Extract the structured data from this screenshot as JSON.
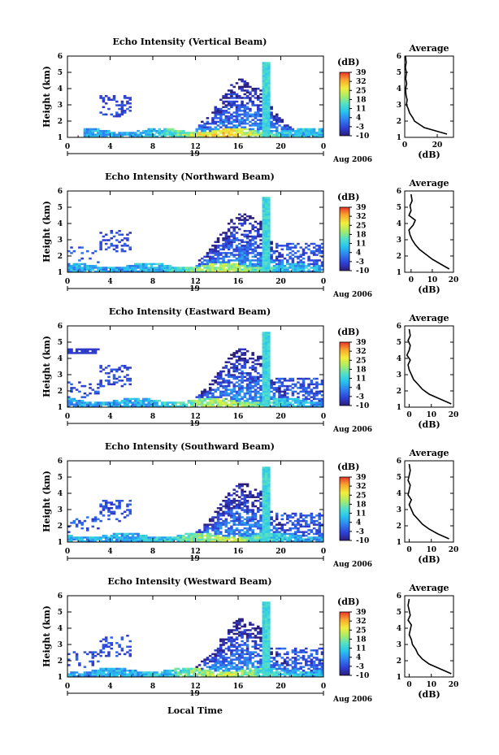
{
  "figure": {
    "xlabel": "Local Time",
    "time_ticks": [
      "0",
      "4",
      "8",
      "12",
      "16",
      "20",
      "0"
    ],
    "date_label": "19",
    "month_label": "Aug 2006",
    "cb_unit": "(dB)",
    "cb_ticks": [
      "39",
      "32",
      "25",
      "18",
      "11",
      "4",
      "-3",
      "-10"
    ],
    "avg_title": "Average",
    "avg_xlabel": "(dB)",
    "ylabel": "Height (km)",
    "y_ticks": [
      "1",
      "2",
      "3",
      "4",
      "5",
      "6"
    ]
  },
  "chart_data": [
    {
      "type": "heatmap",
      "title": "Echo Intensity (Vertical Beam)",
      "xlabel": "Local Time",
      "ylabel": "Height (km)",
      "xlim": [
        0,
        24
      ],
      "ylim": [
        1,
        6
      ],
      "clim": [
        -10,
        39
      ],
      "avg_profile": {
        "type": "line",
        "title": "Average",
        "xlabel": "(dB)",
        "xlim": [
          0,
          30
        ],
        "x_ticks": [
          "0",
          "20"
        ],
        "height_km": [
          1.2,
          1.4,
          1.6,
          1.8,
          2.0,
          2.2,
          2.5,
          2.8,
          3.0,
          3.3,
          3.6,
          4.0,
          4.3,
          4.6,
          5.0,
          5.3,
          5.6,
          6.0
        ],
        "db": [
          26,
          19,
          12,
          9,
          6,
          5,
          3,
          2,
          1,
          1.5,
          0.8,
          0.5,
          1.2,
          0.6,
          1.0,
          0.4,
          0.9,
          0.5
        ]
      }
    },
    {
      "type": "heatmap",
      "title": "Echo Intensity (Northward Beam)",
      "xlabel": "Local Time",
      "ylabel": "Height (km)",
      "xlim": [
        0,
        24
      ],
      "ylim": [
        1,
        6
      ],
      "clim": [
        -10,
        39
      ],
      "avg_profile": {
        "type": "line",
        "title": "Average",
        "xlabel": "(dB)",
        "xlim": [
          -3,
          20
        ],
        "x_ticks": [
          "0",
          "10",
          "20"
        ],
        "height_km": [
          1.2,
          1.5,
          1.8,
          2.1,
          2.4,
          2.7,
          3.0,
          3.3,
          3.6,
          3.9,
          4.2,
          4.5,
          4.8,
          5.1,
          5.4,
          5.8
        ],
        "db": [
          18,
          14,
          10,
          7,
          4,
          2,
          0.5,
          -0.5,
          -1,
          1,
          2,
          -1,
          0,
          -0.5,
          0.5,
          0
        ]
      }
    },
    {
      "type": "heatmap",
      "title": "Echo Intensity (Eastward Beam)",
      "xlabel": "Local Time",
      "ylabel": "Height (km)",
      "xlim": [
        0,
        24
      ],
      "ylim": [
        1,
        6
      ],
      "clim": [
        -10,
        39
      ],
      "avg_profile": {
        "type": "line",
        "title": "Average",
        "xlabel": "(dB)",
        "xlim": [
          -2,
          20
        ],
        "x_ticks": [
          "0",
          "10",
          "20"
        ],
        "height_km": [
          1.2,
          1.5,
          1.8,
          2.1,
          2.4,
          2.7,
          3.0,
          3.3,
          3.6,
          3.9,
          4.2,
          4.5,
          4.8,
          5.1,
          5.4,
          5.8
        ],
        "db": [
          19,
          14,
          9,
          6,
          4,
          2,
          1,
          0,
          -0.5,
          0.5,
          -1,
          0,
          0.5,
          -0.5,
          0.5,
          0
        ]
      }
    },
    {
      "type": "heatmap",
      "title": "Echo Intensity (Southward Beam)",
      "xlabel": "Local Time",
      "ylabel": "Height (km)",
      "xlim": [
        0,
        24
      ],
      "ylim": [
        1,
        6
      ],
      "clim": [
        -10,
        39
      ],
      "avg_profile": {
        "type": "line",
        "title": "Average",
        "xlabel": "(dB)",
        "xlim": [
          -2,
          20
        ],
        "x_ticks": [
          "0",
          "10",
          "20"
        ],
        "height_km": [
          1.2,
          1.5,
          1.8,
          2.1,
          2.4,
          2.7,
          3.0,
          3.3,
          3.6,
          3.9,
          4.2,
          4.5,
          4.8,
          5.1,
          5.4,
          5.8
        ],
        "db": [
          18,
          13,
          9,
          6,
          4,
          2,
          1,
          0,
          1,
          -0.5,
          0,
          0.5,
          -0.5,
          0,
          0.5,
          0
        ]
      }
    },
    {
      "type": "heatmap",
      "title": "Echo Intensity (Westward Beam)",
      "xlabel": "Local Time",
      "ylabel": "Height (km)",
      "xlim": [
        0,
        24
      ],
      "ylim": [
        1,
        6
      ],
      "clim": [
        -10,
        39
      ],
      "avg_profile": {
        "type": "line",
        "title": "Average",
        "xlabel": "(dB)",
        "xlim": [
          -2,
          20
        ],
        "x_ticks": [
          "0",
          "10",
          "20"
        ],
        "height_km": [
          1.2,
          1.5,
          1.8,
          2.1,
          2.4,
          2.7,
          3.0,
          3.3,
          3.6,
          3.9,
          4.2,
          4.5,
          4.8,
          5.1,
          5.4,
          5.8
        ],
        "db": [
          19,
          14,
          9,
          6,
          4,
          3,
          1.5,
          1,
          0,
          0.5,
          1,
          -0.5,
          0.5,
          0,
          -0.5,
          0
        ]
      }
    }
  ]
}
